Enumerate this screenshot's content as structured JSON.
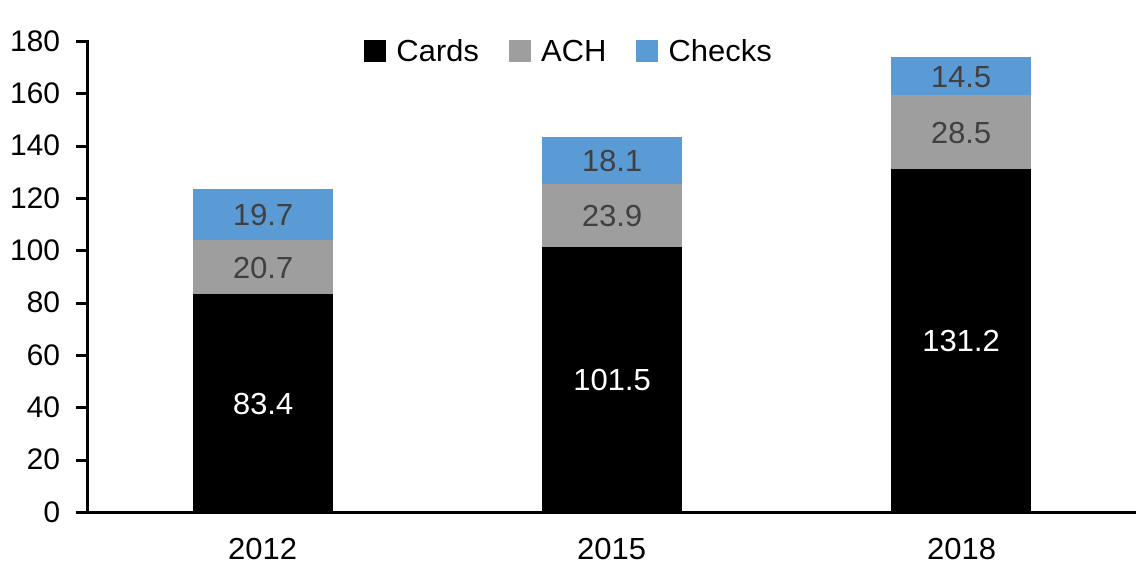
{
  "chart_data": {
    "type": "bar",
    "stacked": true,
    "title": "",
    "xlabel": "",
    "ylabel": "",
    "categories": [
      "2012",
      "2015",
      "2018"
    ],
    "series": [
      {
        "name": "Cards",
        "color": "#000000",
        "label_color": "#ffffff",
        "values": [
          83.4,
          101.5,
          131.2
        ]
      },
      {
        "name": "ACH",
        "color": "#9e9e9e",
        "label_color": "#404040",
        "values": [
          20.7,
          23.9,
          28.5
        ]
      },
      {
        "name": "Checks",
        "color": "#5b9bd5",
        "label_color": "#404040",
        "values": [
          19.7,
          18.1,
          14.5
        ]
      }
    ],
    "totals": [
      123.8,
      143.5,
      174.2
    ],
    "ylim": [
      0,
      180
    ],
    "yticks": [
      0,
      20,
      40,
      60,
      80,
      100,
      120,
      140,
      160,
      180
    ],
    "grid": false,
    "legend_position": "top",
    "axis_color": "#000000",
    "tick_label_color": "#000000"
  }
}
